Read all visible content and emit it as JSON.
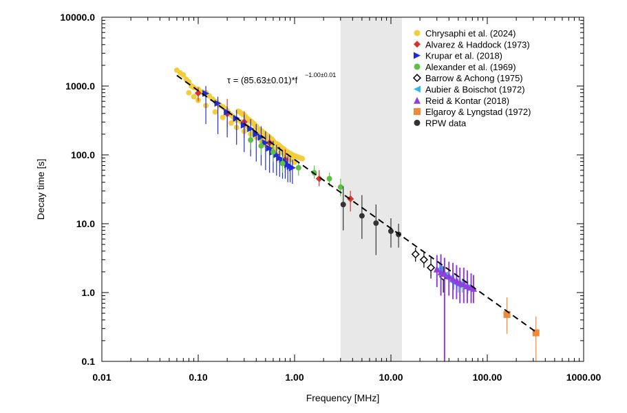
{
  "chart_data": {
    "type": "scatter",
    "xscale": "log",
    "yscale": "log",
    "xlim": [
      0.01,
      1000
    ],
    "ylim": [
      0.1,
      10000
    ],
    "xlabel": "Frequency [MHz]",
    "ylabel": "Decay time [s]",
    "xticks": [
      "0.01",
      "0.10",
      "1.00",
      "10.00",
      "100.00",
      "1000.00"
    ],
    "yticks": [
      "0.1",
      "1.0",
      "10.0",
      "100.0",
      "1000.0",
      "10000.0"
    ],
    "shaded_band": {
      "x_from": 3,
      "x_to": 13,
      "color": "#e8e8e8"
    },
    "fit": {
      "coefficient": 85.63,
      "exponent": -1.0,
      "label_main": "τ = (85.63±0.01)*f",
      "label_exp": "−1.00±0.01",
      "x_range": [
        0.06,
        330
      ],
      "style": "dashed",
      "color": "#000000"
    },
    "legend_position": "top-right",
    "series": [
      {
        "name": "Chrysaphi et al. (2024)",
        "marker": "circle",
        "color": "#f2cd3c",
        "points": [
          [
            0.06,
            1700
          ],
          [
            0.065,
            1550
          ],
          [
            0.07,
            1450
          ],
          [
            0.075,
            1250
          ],
          [
            0.08,
            1150
          ],
          [
            0.085,
            1000
          ],
          [
            0.09,
            950
          ],
          [
            0.1,
            900
          ],
          [
            0.11,
            820
          ],
          [
            0.12,
            800
          ],
          [
            0.13,
            720
          ],
          [
            0.14,
            650
          ],
          [
            0.15,
            600
          ],
          [
            0.16,
            560
          ],
          [
            0.17,
            520
          ],
          [
            0.18,
            500
          ],
          [
            0.19,
            470
          ],
          [
            0.2,
            440
          ],
          [
            0.21,
            400
          ],
          [
            0.22,
            380
          ],
          [
            0.23,
            360
          ],
          [
            0.24,
            330
          ],
          [
            0.25,
            320
          ],
          [
            0.26,
            430
          ],
          [
            0.27,
            420
          ],
          [
            0.28,
            400
          ],
          [
            0.29,
            390
          ],
          [
            0.3,
            380
          ],
          [
            0.31,
            360
          ],
          [
            0.32,
            340
          ],
          [
            0.33,
            330
          ],
          [
            0.34,
            320
          ],
          [
            0.35,
            310
          ],
          [
            0.36,
            300
          ],
          [
            0.37,
            290
          ],
          [
            0.38,
            280
          ],
          [
            0.39,
            270
          ],
          [
            0.4,
            260
          ],
          [
            0.42,
            240
          ],
          [
            0.44,
            230
          ],
          [
            0.46,
            220
          ],
          [
            0.48,
            210
          ],
          [
            0.5,
            200
          ],
          [
            0.52,
            190
          ],
          [
            0.55,
            180
          ],
          [
            0.58,
            170
          ],
          [
            0.6,
            160
          ],
          [
            0.62,
            150
          ],
          [
            0.65,
            145
          ],
          [
            0.68,
            140
          ],
          [
            0.7,
            135
          ],
          [
            0.72,
            130
          ],
          [
            0.75,
            125
          ],
          [
            0.78,
            120
          ],
          [
            0.8,
            115
          ],
          [
            0.85,
            110
          ],
          [
            0.9,
            105
          ],
          [
            0.95,
            100
          ],
          [
            1.0,
            97
          ],
          [
            1.05,
            95
          ],
          [
            1.1,
            92
          ],
          [
            1.15,
            90
          ],
          [
            1.2,
            88
          ],
          [
            0.3,
            220
          ],
          [
            0.35,
            200
          ],
          [
            0.4,
            180
          ],
          [
            0.45,
            160
          ],
          [
            0.5,
            140
          ],
          [
            0.55,
            130
          ],
          [
            0.6,
            120
          ],
          [
            0.7,
            105
          ],
          [
            0.8,
            95
          ],
          [
            0.9,
            85
          ],
          [
            1.0,
            78
          ],
          [
            0.25,
            250
          ],
          [
            0.22,
            290
          ],
          [
            0.18,
            350
          ],
          [
            0.15,
            420
          ],
          [
            0.12,
            520
          ],
          [
            0.1,
            620
          ],
          [
            0.09,
            700
          ],
          [
            0.08,
            800
          ],
          [
            0.28,
            300
          ],
          [
            0.32,
            260
          ],
          [
            0.38,
            230
          ],
          [
            0.42,
            200
          ],
          [
            0.48,
            180
          ],
          [
            0.52,
            160
          ],
          [
            0.58,
            140
          ],
          [
            0.65,
            125
          ],
          [
            0.75,
            110
          ],
          [
            0.85,
            98
          ],
          [
            0.95,
            90
          ]
        ]
      },
      {
        "name": "Alvarez & Haddock (1973)",
        "marker": "diamond",
        "color": "#d9312b",
        "points": [
          [
            0.1,
            790
          ],
          [
            0.2,
            395
          ],
          [
            0.3,
            300
          ],
          [
            0.55,
            150
          ],
          [
            0.8,
            85
          ],
          [
            1.8,
            45
          ],
          [
            3.8,
            23
          ]
        ],
        "errors": [
          [
            0.1,
            600,
            950
          ],
          [
            0.2,
            250,
            650
          ],
          [
            0.3,
            180,
            430
          ],
          [
            0.55,
            110,
            200
          ],
          [
            0.8,
            55,
            120
          ],
          [
            1.8,
            35,
            60
          ],
          [
            3.8,
            15,
            30
          ]
        ]
      },
      {
        "name": "Krupar et al. (2018)",
        "marker": "triangle-right",
        "color": "#1f2bd6",
        "points": [
          [
            0.12,
            780
          ],
          [
            0.16,
            560
          ],
          [
            0.2,
            420
          ],
          [
            0.25,
            340
          ],
          [
            0.3,
            270
          ],
          [
            0.35,
            240
          ],
          [
            0.4,
            200
          ],
          [
            0.45,
            180
          ],
          [
            0.5,
            150
          ],
          [
            0.55,
            125
          ],
          [
            0.6,
            110
          ],
          [
            0.65,
            100
          ],
          [
            0.7,
            90
          ],
          [
            0.75,
            85
          ],
          [
            0.8,
            78
          ],
          [
            0.85,
            72
          ],
          [
            0.9,
            68
          ],
          [
            0.95,
            65
          ]
        ],
        "errors": [
          [
            0.12,
            280,
            1000
          ],
          [
            0.16,
            200,
            700
          ],
          [
            0.2,
            180,
            500
          ],
          [
            0.25,
            140,
            450
          ],
          [
            0.3,
            110,
            380
          ],
          [
            0.35,
            95,
            330
          ],
          [
            0.4,
            80,
            280
          ],
          [
            0.45,
            70,
            260
          ],
          [
            0.5,
            60,
            220
          ],
          [
            0.55,
            55,
            190
          ],
          [
            0.6,
            55,
            160
          ],
          [
            0.65,
            50,
            140
          ],
          [
            0.7,
            48,
            130
          ],
          [
            0.75,
            45,
            115
          ],
          [
            0.8,
            45,
            100
          ],
          [
            0.85,
            40,
            95
          ],
          [
            0.9,
            40,
            90
          ],
          [
            0.95,
            38,
            85
          ]
        ]
      },
      {
        "name": "Alexander et al. (1969)",
        "marker": "circle",
        "color": "#5dbf43",
        "points": [
          [
            0.35,
            165
          ],
          [
            0.45,
            135
          ],
          [
            0.6,
            110
          ],
          [
            0.75,
            75
          ],
          [
            1.1,
            65
          ],
          [
            1.6,
            55
          ],
          [
            2.3,
            45
          ],
          [
            3.0,
            34
          ]
        ],
        "errors": [
          [
            0.35,
            120,
            220
          ],
          [
            0.45,
            100,
            175
          ],
          [
            0.6,
            80,
            140
          ],
          [
            0.75,
            55,
            95
          ],
          [
            1.1,
            50,
            80
          ],
          [
            1.6,
            45,
            70
          ],
          [
            2.3,
            35,
            55
          ],
          [
            3.0,
            25,
            45
          ]
        ]
      },
      {
        "name": "Barrow & Achong (1975)",
        "marker": "diamond-open",
        "color": "#000000",
        "points": [
          [
            18,
            3.6
          ],
          [
            22,
            3.0
          ],
          [
            26,
            2.3
          ],
          [
            35,
            1.7
          ]
        ],
        "errors": [
          [
            18,
            2.8,
            4.5
          ],
          [
            22,
            2.3,
            3.8
          ],
          [
            26,
            1.6,
            3.2
          ],
          [
            35,
            1.0,
            2.4
          ]
        ]
      },
      {
        "name": "Aubier & Boischot (1972)",
        "marker": "triangle-left",
        "color": "#38b6e8",
        "points": [
          [
            32,
            2.2
          ],
          [
            36,
            1.8
          ],
          [
            40,
            1.6
          ],
          [
            45,
            1.4
          ],
          [
            50,
            1.3
          ],
          [
            55,
            1.3
          ],
          [
            63,
            1.2
          ]
        ],
        "errors": [
          [
            32,
            1.7,
            2.8
          ],
          [
            36,
            1.4,
            2.3
          ],
          [
            40,
            1.2,
            2.0
          ],
          [
            45,
            1.1,
            1.8
          ],
          [
            50,
            1.0,
            1.6
          ],
          [
            55,
            1.0,
            1.6
          ],
          [
            63,
            0.95,
            1.5
          ]
        ]
      },
      {
        "name": "Reid & Kontar (2018)",
        "marker": "triangle-up",
        "color": "#8f3fe0",
        "points": [
          [
            30,
            2.2
          ],
          [
            33,
            2.0
          ],
          [
            36,
            1.9
          ],
          [
            40,
            1.75
          ],
          [
            44,
            1.6
          ],
          [
            48,
            1.5
          ],
          [
            52,
            1.4
          ],
          [
            57,
            1.35
          ],
          [
            62,
            1.25
          ],
          [
            68,
            1.2
          ],
          [
            72,
            1.15
          ]
        ],
        "errors": [
          [
            30,
            1.2,
            3.5
          ],
          [
            33,
            0.9,
            3.6
          ],
          [
            36,
            0.08,
            3.2
          ],
          [
            40,
            0.9,
            2.8
          ],
          [
            44,
            0.8,
            2.7
          ],
          [
            48,
            0.8,
            2.5
          ],
          [
            52,
            0.7,
            2.3
          ],
          [
            57,
            0.7,
            2.3
          ],
          [
            62,
            0.7,
            2.1
          ],
          [
            68,
            0.7,
            1.9
          ],
          [
            72,
            0.7,
            1.8
          ]
        ]
      },
      {
        "name": "Elgaroy & Lyngstad (1972)",
        "marker": "square",
        "color": "#ee8a3a",
        "points": [
          [
            160,
            0.48
          ],
          [
            320,
            0.26
          ]
        ],
        "errors": [
          [
            160,
            0.25,
            0.85
          ],
          [
            320,
            0.1,
            0.45
          ]
        ]
      },
      {
        "name": "RPW data",
        "marker": "circle",
        "color": "#333333",
        "points": [
          [
            3.2,
            19
          ],
          [
            5.0,
            13
          ],
          [
            7.0,
            10.2
          ],
          [
            10.0,
            7.8
          ],
          [
            12.0,
            7.0
          ]
        ],
        "errors": [
          [
            3.2,
            8,
            35
          ],
          [
            5.0,
            6,
            26
          ],
          [
            7.0,
            3.5,
            19
          ],
          [
            10.0,
            4.5,
            12
          ],
          [
            12.0,
            4.5,
            10
          ]
        ]
      }
    ]
  }
}
